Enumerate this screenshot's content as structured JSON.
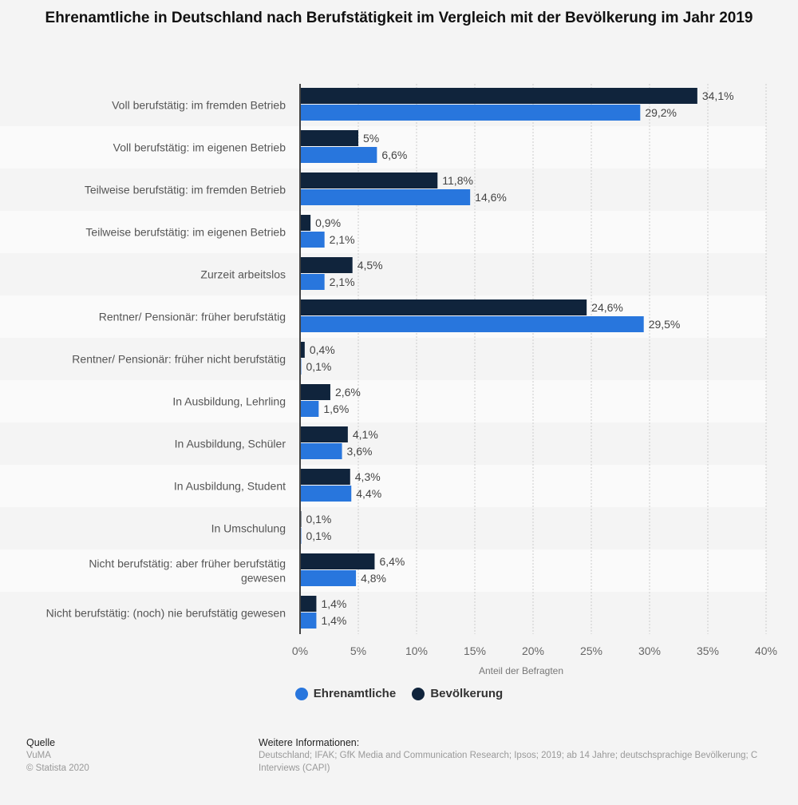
{
  "chart_data": {
    "type": "bar",
    "orientation": "horizontal",
    "title": "Ehrenamtliche in Deutschland nach Berufstätigkeit im Vergleich mit der Bevölkerung im Jahr 2019",
    "xlabel": "Anteil der Befragten",
    "xlim": [
      0,
      40
    ],
    "ticks": [
      "0%",
      "5%",
      "10%",
      "15%",
      "20%",
      "25%",
      "30%",
      "35%",
      "40%"
    ],
    "grid": true,
    "legend_position": "bottom",
    "categories": [
      "Voll berufstätig: im fremden Betrieb",
      "Voll berufstätig: im eigenen Betrieb",
      "Teilweise berufstätig: im fremden Betrieb",
      "Teilweise berufstätig: im eigenen Betrieb",
      "Zurzeit arbeitslos",
      "Rentner/ Pensionär: früher berufstätig",
      "Rentner/ Pensionär: früher nicht berufstätig",
      "In Ausbildung, Lehrling",
      "In Ausbildung, Schüler",
      "In Ausbildung, Student",
      "In Umschulung",
      "Nicht berufstätig: aber früher berufstätig gewesen",
      "Nicht berufstätig: (noch) nie berufstätig gewesen"
    ],
    "series": [
      {
        "name": "Bevölkerung",
        "color": "#10243c",
        "values": [
          34.1,
          5,
          11.8,
          0.9,
          4.5,
          24.6,
          0.4,
          2.6,
          4.1,
          4.3,
          0.1,
          6.4,
          1.4
        ],
        "labels": [
          "34,1%",
          "5%",
          "11,8%",
          "0,9%",
          "4,5%",
          "24,6%",
          "0,4%",
          "2,6%",
          "4,1%",
          "4,3%",
          "0,1%",
          "6,4%",
          "1,4%"
        ]
      },
      {
        "name": "Ehrenamtliche",
        "color": "#2876dd",
        "values": [
          29.2,
          6.6,
          14.6,
          2.1,
          2.1,
          29.5,
          0.1,
          1.6,
          3.6,
          4.4,
          0.1,
          4.8,
          1.4
        ],
        "labels": [
          "29,2%",
          "6,6%",
          "14,6%",
          "2,1%",
          "2,1%",
          "29,5%",
          "0,1%",
          "1,6%",
          "3,6%",
          "4,4%",
          "0,1%",
          "4,8%",
          "1,4%"
        ]
      }
    ]
  },
  "legend": {
    "items": [
      {
        "label": "Ehrenamtliche",
        "color": "#2876dd"
      },
      {
        "label": "Bevölkerung",
        "color": "#10243c"
      }
    ]
  },
  "footer": {
    "source_heading": "Quelle",
    "source": "VuMA",
    "copyright": "© Statista 2020",
    "info_heading": "Weitere Informationen:",
    "info_line1": "Deutschland; IFAK; GfK Media and Communication Research; Ipsos; 2019; ab 14 Jahre; deutschsprachige Bevölkerung; C",
    "info_line2": "Interviews (CAPI)"
  }
}
